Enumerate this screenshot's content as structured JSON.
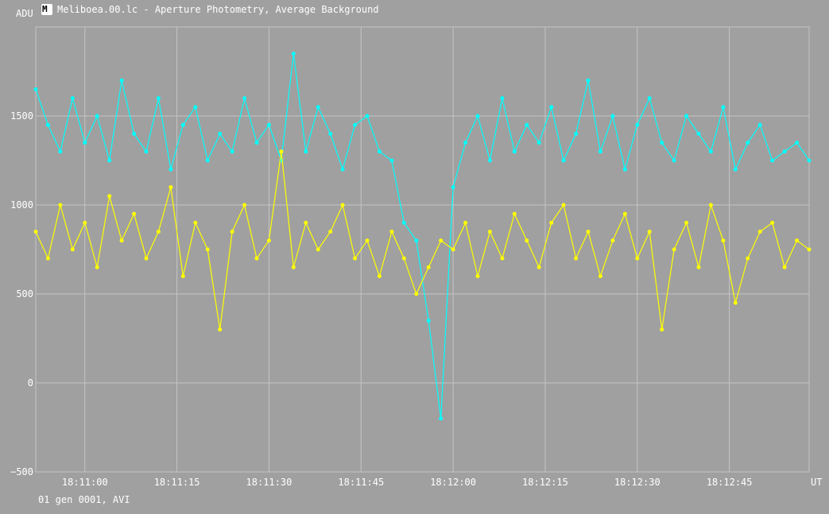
{
  "window": {
    "title": "Meliboea.00.lc - Aperture Photometry, Average Background",
    "icon": "aperture-photometry-icon"
  },
  "footer": {
    "text": "01 gen 0001, AVI"
  },
  "chart_data": {
    "type": "line",
    "ylabel": "ADU",
    "xlabel": "UT",
    "ylim": [
      -500,
      2000
    ],
    "y_ticks": [
      {
        "value": 1500,
        "label": "1500"
      },
      {
        "value": 1000,
        "label": "1000"
      },
      {
        "value": 500,
        "label": "500"
      },
      {
        "value": 0,
        "label": "0"
      },
      {
        "value": -500,
        "label": "−500"
      }
    ],
    "xlim": [
      "18:10:52",
      "18:12:58"
    ],
    "x_ticks": [
      "18:11:00",
      "18:11:15",
      "18:11:30",
      "18:11:45",
      "18:12:00",
      "18:12:15",
      "18:12:30",
      "18:12:45"
    ],
    "grid": true,
    "series": [
      {
        "color": "#00ffff",
        "x": [
          "18:10:52",
          "18:10:54",
          "18:10:56",
          "18:10:58",
          "18:11:00",
          "18:11:02",
          "18:11:04",
          "18:11:06",
          "18:11:08",
          "18:11:10",
          "18:11:12",
          "18:11:14",
          "18:11:16",
          "18:11:18",
          "18:11:20",
          "18:11:22",
          "18:11:24",
          "18:11:26",
          "18:11:28",
          "18:11:30",
          "18:11:32",
          "18:11:34",
          "18:11:36",
          "18:11:38",
          "18:11:40",
          "18:11:42",
          "18:11:44",
          "18:11:46",
          "18:11:48",
          "18:11:50",
          "18:11:52",
          "18:11:54",
          "18:11:56",
          "18:11:58",
          "18:12:00",
          "18:12:02",
          "18:12:04",
          "18:12:06",
          "18:12:08",
          "18:12:10",
          "18:12:12",
          "18:12:14",
          "18:12:16",
          "18:12:18",
          "18:12:20",
          "18:12:22",
          "18:12:24",
          "18:12:26",
          "18:12:28",
          "18:12:30",
          "18:12:32",
          "18:12:34",
          "18:12:36",
          "18:12:38",
          "18:12:40",
          "18:12:42",
          "18:12:44",
          "18:12:46",
          "18:12:48",
          "18:12:50",
          "18:12:52",
          "18:12:54",
          "18:12:56",
          "18:12:58"
        ],
        "values": [
          1650,
          1450,
          1300,
          1600,
          1350,
          1500,
          1250,
          1700,
          1400,
          1300,
          1600,
          1200,
          1450,
          1550,
          1250,
          1400,
          1300,
          1600,
          1350,
          1450,
          1250,
          1850,
          1300,
          1550,
          1400,
          1200,
          1450,
          1500,
          1300,
          1250,
          900,
          800,
          350,
          -200,
          1100,
          1350,
          1500,
          1250,
          1600,
          1300,
          1450,
          1350,
          1550,
          1250,
          1400,
          1700,
          1300,
          1500,
          1200,
          1450,
          1600,
          1350,
          1250,
          1500,
          1400,
          1300,
          1550,
          1200,
          1350,
          1450,
          1250,
          1300,
          1350,
          1250
        ]
      },
      {
        "color": "#ffff00",
        "x": [
          "18:10:52",
          "18:10:54",
          "18:10:56",
          "18:10:58",
          "18:11:00",
          "18:11:02",
          "18:11:04",
          "18:11:06",
          "18:11:08",
          "18:11:10",
          "18:11:12",
          "18:11:14",
          "18:11:16",
          "18:11:18",
          "18:11:20",
          "18:11:22",
          "18:11:24",
          "18:11:26",
          "18:11:28",
          "18:11:30",
          "18:11:32",
          "18:11:34",
          "18:11:36",
          "18:11:38",
          "18:11:40",
          "18:11:42",
          "18:11:44",
          "18:11:46",
          "18:11:48",
          "18:11:50",
          "18:11:52",
          "18:11:54",
          "18:11:56",
          "18:11:58",
          "18:12:00",
          "18:12:02",
          "18:12:04",
          "18:12:06",
          "18:12:08",
          "18:12:10",
          "18:12:12",
          "18:12:14",
          "18:12:16",
          "18:12:18",
          "18:12:20",
          "18:12:22",
          "18:12:24",
          "18:12:26",
          "18:12:28",
          "18:12:30",
          "18:12:32",
          "18:12:34",
          "18:12:36",
          "18:12:38",
          "18:12:40",
          "18:12:42",
          "18:12:44",
          "18:12:46",
          "18:12:48",
          "18:12:50",
          "18:12:52",
          "18:12:54",
          "18:12:56",
          "18:12:58"
        ],
        "values": [
          850,
          700,
          1000,
          750,
          900,
          650,
          1050,
          800,
          950,
          700,
          850,
          1100,
          600,
          900,
          750,
          300,
          850,
          1000,
          700,
          800,
          1300,
          650,
          900,
          750,
          850,
          1000,
          700,
          800,
          600,
          850,
          700,
          500,
          650,
          800,
          750,
          900,
          600,
          850,
          700,
          950,
          800,
          650,
          900,
          1000,
          700,
          850,
          600,
          800,
          950,
          700,
          850,
          300,
          750,
          900,
          650,
          1000,
          800,
          450,
          700,
          850,
          900,
          650,
          800,
          750
        ]
      }
    ]
  }
}
